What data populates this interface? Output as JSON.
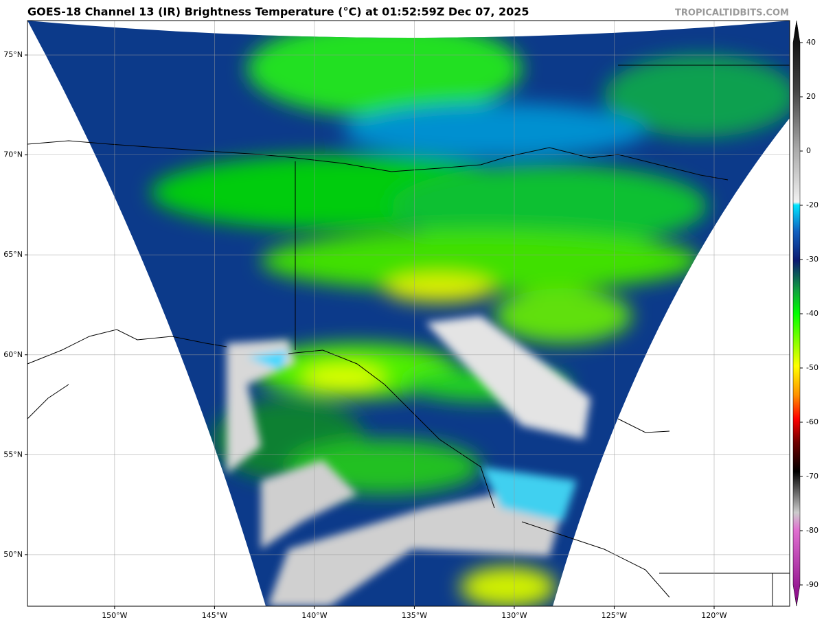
{
  "header": {
    "title": "GOES-18 Channel 13 (IR) Brightness Temperature (°C) at 01:52:59Z Dec 07, 2025",
    "watermark": "TROPICALTIDBITS.COM"
  },
  "map": {
    "lonlim": [
      -154.36,
      -116.22
    ],
    "latlim": [
      47.42,
      76.72
    ],
    "lon_ticks": [
      {
        "value": -150,
        "label": "150°W"
      },
      {
        "value": -145,
        "label": "145°W"
      },
      {
        "value": -140,
        "label": "140°W"
      },
      {
        "value": -135,
        "label": "135°W"
      },
      {
        "value": -130,
        "label": "130°W"
      },
      {
        "value": -125,
        "label": "125°W"
      },
      {
        "value": -120,
        "label": "120°W"
      }
    ],
    "lat_ticks": [
      {
        "value": 75,
        "label": "75°N"
      },
      {
        "value": 70,
        "label": "70°N"
      },
      {
        "value": 65,
        "label": "65°N"
      },
      {
        "value": 60,
        "label": "60°N"
      },
      {
        "value": 55,
        "label": "55°N"
      },
      {
        "value": 50,
        "label": "50°N"
      }
    ]
  },
  "colorbar": {
    "ticks": [
      40,
      20,
      0,
      -20,
      -30,
      -40,
      -50,
      -60,
      -70,
      -80,
      -90
    ]
  }
}
